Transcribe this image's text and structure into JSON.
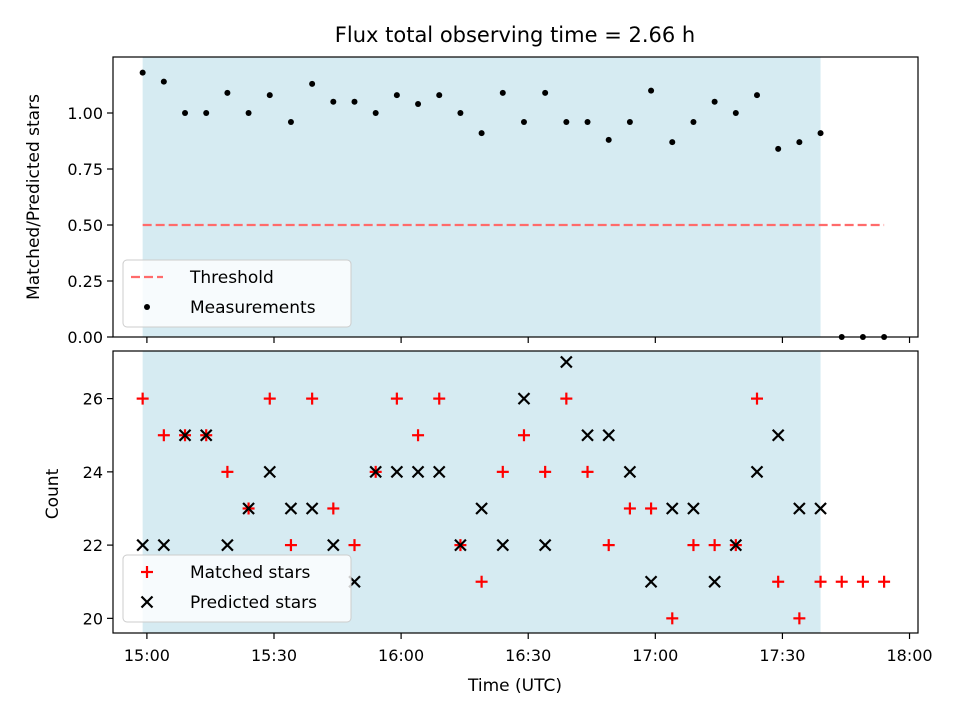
{
  "colors": {
    "shade": "#add8e6",
    "threshold": "#ff6b6b",
    "matched": "#ff0000",
    "predicted": "#000000",
    "measurement": "#000000"
  },
  "chart_data": [
    {
      "type": "scatter",
      "panel": "top",
      "title": "Flux total observing time = 2.66 h",
      "ylabel": "Matched/Predicted stars",
      "xlabel": "",
      "xlim": [
        "14:52",
        "18:02"
      ],
      "ylim": [
        0,
        1.25
      ],
      "yticks": [
        0.0,
        0.25,
        0.5,
        0.75,
        1.0
      ],
      "ytick_labels": [
        "0.00",
        "0.25",
        "0.50",
        "0.75",
        "1.00"
      ],
      "shaded_interval": [
        "14:59",
        "17:39"
      ],
      "threshold": {
        "name": "Threshold",
        "value": 0.5,
        "x": [
          "14:59",
          "17:54"
        ]
      },
      "series": [
        {
          "name": "Measurements",
          "x": [
            "14:59",
            "15:04",
            "15:09",
            "15:14",
            "15:19",
            "15:24",
            "15:29",
            "15:34",
            "15:39",
            "15:44",
            "15:49",
            "15:54",
            "15:59",
            "16:04",
            "16:09",
            "16:14",
            "16:19",
            "16:24",
            "16:29",
            "16:34",
            "16:39",
            "16:44",
            "16:49",
            "16:54",
            "16:59",
            "17:04",
            "17:09",
            "17:14",
            "17:19",
            "17:24",
            "17:29",
            "17:34",
            "17:39",
            "17:44",
            "17:49",
            "17:54"
          ],
          "y": [
            1.18,
            1.14,
            1.0,
            1.0,
            1.09,
            1.0,
            1.08,
            0.96,
            1.13,
            1.05,
            1.05,
            1.0,
            1.08,
            1.04,
            1.08,
            1.0,
            0.91,
            1.09,
            0.96,
            1.09,
            0.96,
            0.96,
            0.88,
            0.96,
            1.1,
            0.87,
            0.96,
            1.05,
            1.0,
            1.08,
            0.84,
            0.87,
            0.91,
            0.0,
            0.0,
            0.0
          ]
        }
      ],
      "legend": {
        "placement": "lower-left",
        "entries": [
          "Threshold",
          "Measurements"
        ]
      }
    },
    {
      "type": "scatter",
      "panel": "bottom",
      "xlabel": "Time (UTC)",
      "ylabel": "Count",
      "xlim": [
        "14:52",
        "18:02"
      ],
      "xticks": [
        "15:00",
        "15:30",
        "16:00",
        "16:30",
        "17:00",
        "17:30",
        "18:00"
      ],
      "ylim": [
        19.6,
        27.3
      ],
      "yticks": [
        20,
        22,
        24,
        26
      ],
      "shaded_interval": [
        "14:59",
        "17:39"
      ],
      "series": [
        {
          "name": "Matched stars",
          "marker": "plus",
          "x": [
            "14:59",
            "15:04",
            "15:09",
            "15:14",
            "15:19",
            "15:24",
            "15:29",
            "15:34",
            "15:39",
            "15:44",
            "15:49",
            "15:54",
            "15:59",
            "16:04",
            "16:09",
            "16:14",
            "16:19",
            "16:24",
            "16:29",
            "16:34",
            "16:39",
            "16:44",
            "16:49",
            "16:54",
            "16:59",
            "17:04",
            "17:09",
            "17:14",
            "17:19",
            "17:24",
            "17:29",
            "17:34",
            "17:39",
            "17:44",
            "17:49",
            "17:54"
          ],
          "y": [
            26,
            25,
            25,
            25,
            24,
            23,
            26,
            22,
            26,
            23,
            22,
            24,
            26,
            25,
            26,
            22,
            21,
            24,
            25,
            24,
            26,
            24,
            22,
            23,
            23,
            20,
            22,
            22,
            22,
            26,
            21,
            20,
            21,
            21,
            21,
            21
          ]
        },
        {
          "name": "Predicted stars",
          "marker": "x",
          "x": [
            "14:59",
            "15:04",
            "15:09",
            "15:14",
            "15:19",
            "15:24",
            "15:29",
            "15:34",
            "15:39",
            "15:44",
            "15:49",
            "15:54",
            "15:59",
            "16:04",
            "16:09",
            "16:14",
            "16:19",
            "16:24",
            "16:29",
            "16:34",
            "16:39",
            "16:44",
            "16:49",
            "16:54",
            "16:59",
            "17:04",
            "17:09",
            "17:14",
            "17:19",
            "17:24",
            "17:29",
            "17:34",
            "17:39"
          ],
          "y": [
            22,
            22,
            25,
            25,
            22,
            23,
            24,
            23,
            23,
            22,
            21,
            24,
            24,
            24,
            24,
            22,
            23,
            22,
            26,
            22,
            27,
            25,
            25,
            24,
            21,
            23,
            23,
            21,
            22,
            24,
            25,
            23,
            23
          ]
        }
      ],
      "legend": {
        "placement": "lower-left",
        "entries": [
          "Matched stars",
          "Predicted stars"
        ]
      }
    }
  ]
}
